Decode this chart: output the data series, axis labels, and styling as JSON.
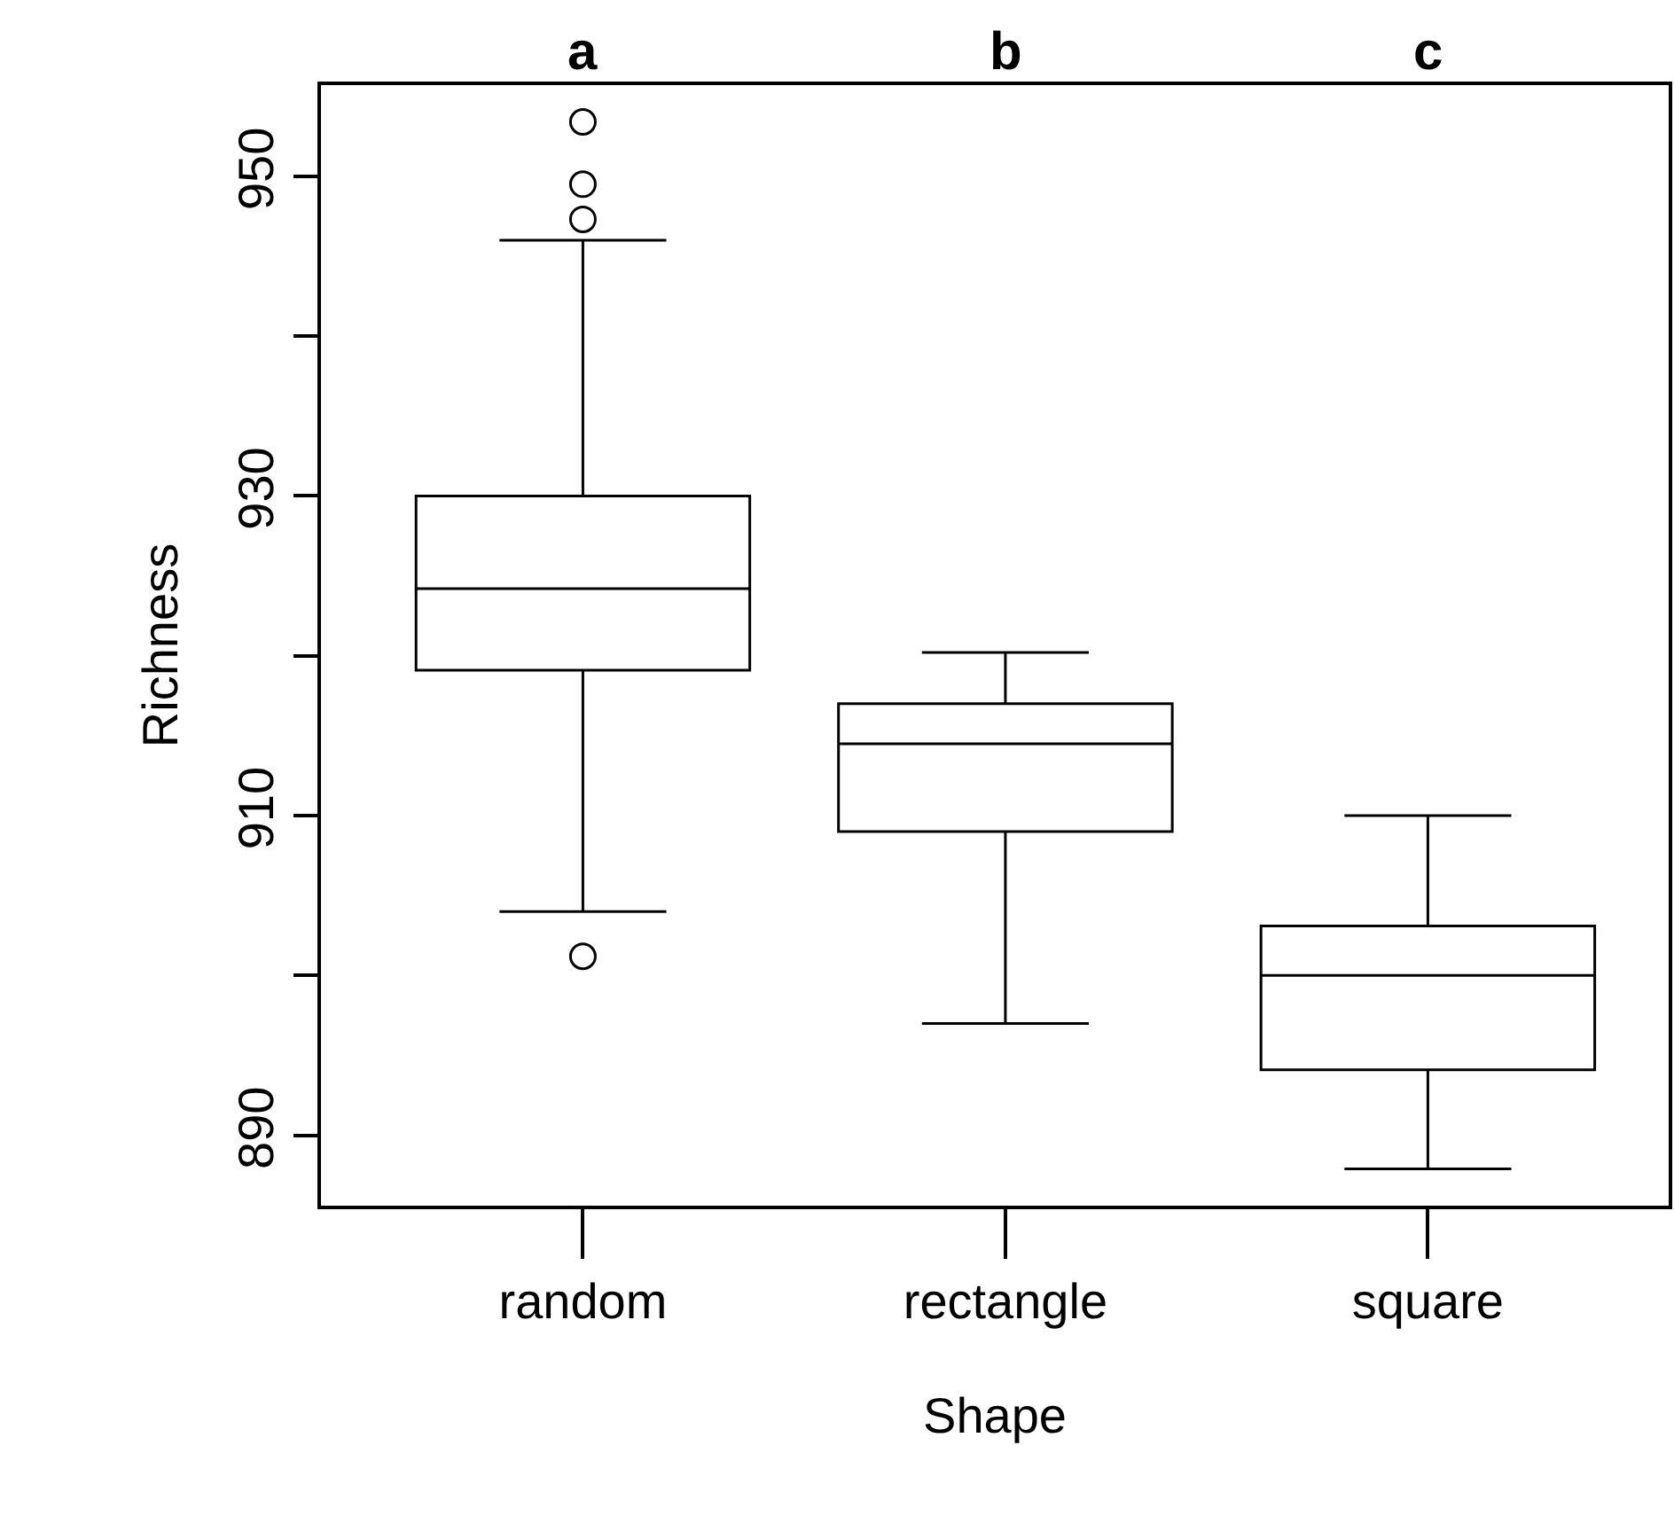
{
  "chart_data": {
    "type": "box",
    "xlabel": "Shape",
    "ylabel": "Richness",
    "categories": [
      "random",
      "rectangle",
      "square"
    ],
    "boxes": [
      {
        "low": 904,
        "q1": 919.1,
        "median": 924.2,
        "q3": 930,
        "high": 946,
        "outliers": [
          953.4,
          949.5,
          947.3,
          901.2
        ]
      },
      {
        "low": 897,
        "q1": 909,
        "median": 914.5,
        "q3": 917,
        "high": 920.2
      },
      {
        "low": 887.9,
        "q1": 894.1,
        "median": 900,
        "q3": 903.1,
        "high": 910
      }
    ],
    "color": "#000000",
    "ylim": [
      885.6,
      955.7
    ],
    "yticks": [
      890,
      {
        "value": 900,
        "label": null
      },
      910,
      {
        "value": 920,
        "label": null
      },
      930,
      {
        "value": 940,
        "label": null
      },
      950
    ],
    "annotations": [
      "a",
      "b",
      "c"
    ],
    "marker": "circle"
  }
}
